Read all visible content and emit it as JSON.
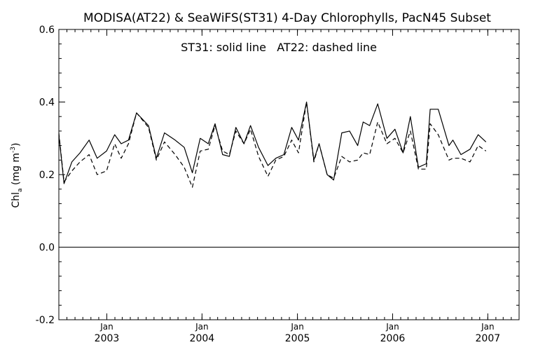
{
  "chart_data": {
    "type": "line",
    "title": "MODISA(AT22) & SeaWiFS(ST31) 4-Day Chlorophylls, PacN45 Subset",
    "annotation": "ST31: solid line   AT22: dashed line",
    "ylabel_main": "Chl",
    "ylabel_sub": "a",
    "ylabel_unit_pre": " (mg m",
    "ylabel_unit_sup": "-3",
    "ylabel_unit_post": ")",
    "ylim": [
      -0.2,
      0.6
    ],
    "xlim": [
      "2002-07-01",
      "2007-05-01"
    ],
    "y_ticks": [
      {
        "value": -0.2,
        "label": "-0.2"
      },
      {
        "value": 0.0,
        "label": "0.0"
      },
      {
        "value": 0.2,
        "label": "0.2"
      },
      {
        "value": 0.4,
        "label": "0.4"
      },
      {
        "value": 0.6,
        "label": "0.6"
      }
    ],
    "x_ticks": [
      {
        "date": "2003-01-01",
        "month": "Jan",
        "year": "2003"
      },
      {
        "date": "2004-01-01",
        "month": "Jan",
        "year": "2004"
      },
      {
        "date": "2005-01-01",
        "month": "Jan",
        "year": "2005"
      },
      {
        "date": "2006-01-01",
        "month": "Jan",
        "year": "2006"
      },
      {
        "date": "2007-01-01",
        "month": "Jan",
        "year": "2007"
      }
    ],
    "reference_line": 0.0,
    "series": [
      {
        "name": "ST31",
        "style": "solid",
        "color": "#000000",
        "points": [
          [
            "2002-07-01",
            0.31
          ],
          [
            "2002-07-21",
            0.175
          ],
          [
            "2002-08-20",
            0.235
          ],
          [
            "2002-09-20",
            0.26
          ],
          [
            "2002-10-25",
            0.295
          ],
          [
            "2002-11-25",
            0.245
          ],
          [
            "2002-12-31",
            0.265
          ],
          [
            "2003-01-31",
            0.31
          ],
          [
            "2003-02-25",
            0.285
          ],
          [
            "2003-03-25",
            0.295
          ],
          [
            "2003-04-25",
            0.37
          ],
          [
            "2003-06-10",
            0.335
          ],
          [
            "2003-07-10",
            0.245
          ],
          [
            "2003-08-10",
            0.315
          ],
          [
            "2003-09-20",
            0.295
          ],
          [
            "2003-10-25",
            0.275
          ],
          [
            "2003-11-25",
            0.205
          ],
          [
            "2003-12-25",
            0.3
          ],
          [
            "2004-01-25",
            0.285
          ],
          [
            "2004-02-20",
            0.34
          ],
          [
            "2004-03-20",
            0.255
          ],
          [
            "2004-04-15",
            0.25
          ],
          [
            "2004-05-10",
            0.33
          ],
          [
            "2004-06-10",
            0.285
          ],
          [
            "2004-07-05",
            0.335
          ],
          [
            "2004-08-05",
            0.275
          ],
          [
            "2004-09-10",
            0.225
          ],
          [
            "2004-10-10",
            0.245
          ],
          [
            "2004-11-10",
            0.255
          ],
          [
            "2004-12-10",
            0.33
          ],
          [
            "2005-01-05",
            0.295
          ],
          [
            "2005-02-05",
            0.4
          ],
          [
            "2005-03-05",
            0.24
          ],
          [
            "2005-03-25",
            0.285
          ],
          [
            "2005-04-25",
            0.2
          ],
          [
            "2005-05-20",
            0.185
          ],
          [
            "2005-06-20",
            0.315
          ],
          [
            "2005-07-20",
            0.32
          ],
          [
            "2005-08-20",
            0.28
          ],
          [
            "2005-09-10",
            0.345
          ],
          [
            "2005-10-05",
            0.335
          ],
          [
            "2005-11-05",
            0.395
          ],
          [
            "2005-12-10",
            0.3
          ],
          [
            "2006-01-10",
            0.325
          ],
          [
            "2006-02-10",
            0.26
          ],
          [
            "2006-03-10",
            0.36
          ],
          [
            "2006-04-10",
            0.22
          ],
          [
            "2006-05-10",
            0.23
          ],
          [
            "2006-05-25",
            0.38
          ],
          [
            "2006-06-25",
            0.38
          ],
          [
            "2006-08-05",
            0.28
          ],
          [
            "2006-08-20",
            0.295
          ],
          [
            "2006-09-20",
            0.255
          ],
          [
            "2006-10-25",
            0.27
          ],
          [
            "2006-11-25",
            0.31
          ],
          [
            "2006-12-25",
            0.29
          ]
        ]
      },
      {
        "name": "AT22",
        "style": "dashed",
        "color": "#000000",
        "points": [
          [
            "2002-07-01",
            0.315
          ],
          [
            "2002-07-21",
            0.18
          ],
          [
            "2002-08-20",
            0.21
          ],
          [
            "2002-09-20",
            0.235
          ],
          [
            "2002-10-25",
            0.255
          ],
          [
            "2002-11-25",
            0.2
          ],
          [
            "2002-12-31",
            0.21
          ],
          [
            "2003-01-31",
            0.285
          ],
          [
            "2003-02-25",
            0.245
          ],
          [
            "2003-03-25",
            0.285
          ],
          [
            "2003-04-25",
            0.37
          ],
          [
            "2003-06-10",
            0.33
          ],
          [
            "2003-07-10",
            0.24
          ],
          [
            "2003-08-10",
            0.29
          ],
          [
            "2003-09-20",
            0.255
          ],
          [
            "2003-10-25",
            0.22
          ],
          [
            "2003-11-25",
            0.165
          ],
          [
            "2003-12-25",
            0.265
          ],
          [
            "2004-01-25",
            0.27
          ],
          [
            "2004-02-20",
            0.335
          ],
          [
            "2004-03-20",
            0.265
          ],
          [
            "2004-04-15",
            0.255
          ],
          [
            "2004-05-10",
            0.32
          ],
          [
            "2004-06-10",
            0.285
          ],
          [
            "2004-07-05",
            0.325
          ],
          [
            "2004-08-05",
            0.25
          ],
          [
            "2004-09-10",
            0.195
          ],
          [
            "2004-10-10",
            0.24
          ],
          [
            "2004-11-10",
            0.25
          ],
          [
            "2004-12-10",
            0.295
          ],
          [
            "2005-01-05",
            0.26
          ],
          [
            "2005-02-05",
            0.4
          ],
          [
            "2005-03-05",
            0.235
          ],
          [
            "2005-03-25",
            0.285
          ],
          [
            "2005-04-25",
            0.2
          ],
          [
            "2005-05-20",
            0.19
          ],
          [
            "2005-06-20",
            0.25
          ],
          [
            "2005-07-20",
            0.235
          ],
          [
            "2005-08-20",
            0.24
          ],
          [
            "2005-09-10",
            0.26
          ],
          [
            "2005-10-05",
            0.255
          ],
          [
            "2005-11-05",
            0.345
          ],
          [
            "2005-12-10",
            0.285
          ],
          [
            "2006-01-10",
            0.3
          ],
          [
            "2006-02-10",
            0.26
          ],
          [
            "2006-03-10",
            0.32
          ],
          [
            "2006-04-10",
            0.215
          ],
          [
            "2006-05-10",
            0.215
          ],
          [
            "2006-05-25",
            0.34
          ],
          [
            "2006-06-25",
            0.31
          ],
          [
            "2006-08-05",
            0.24
          ],
          [
            "2006-08-20",
            0.245
          ],
          [
            "2006-09-20",
            0.245
          ],
          [
            "2006-10-25",
            0.235
          ],
          [
            "2006-11-25",
            0.28
          ],
          [
            "2006-12-25",
            0.265
          ]
        ]
      }
    ]
  }
}
